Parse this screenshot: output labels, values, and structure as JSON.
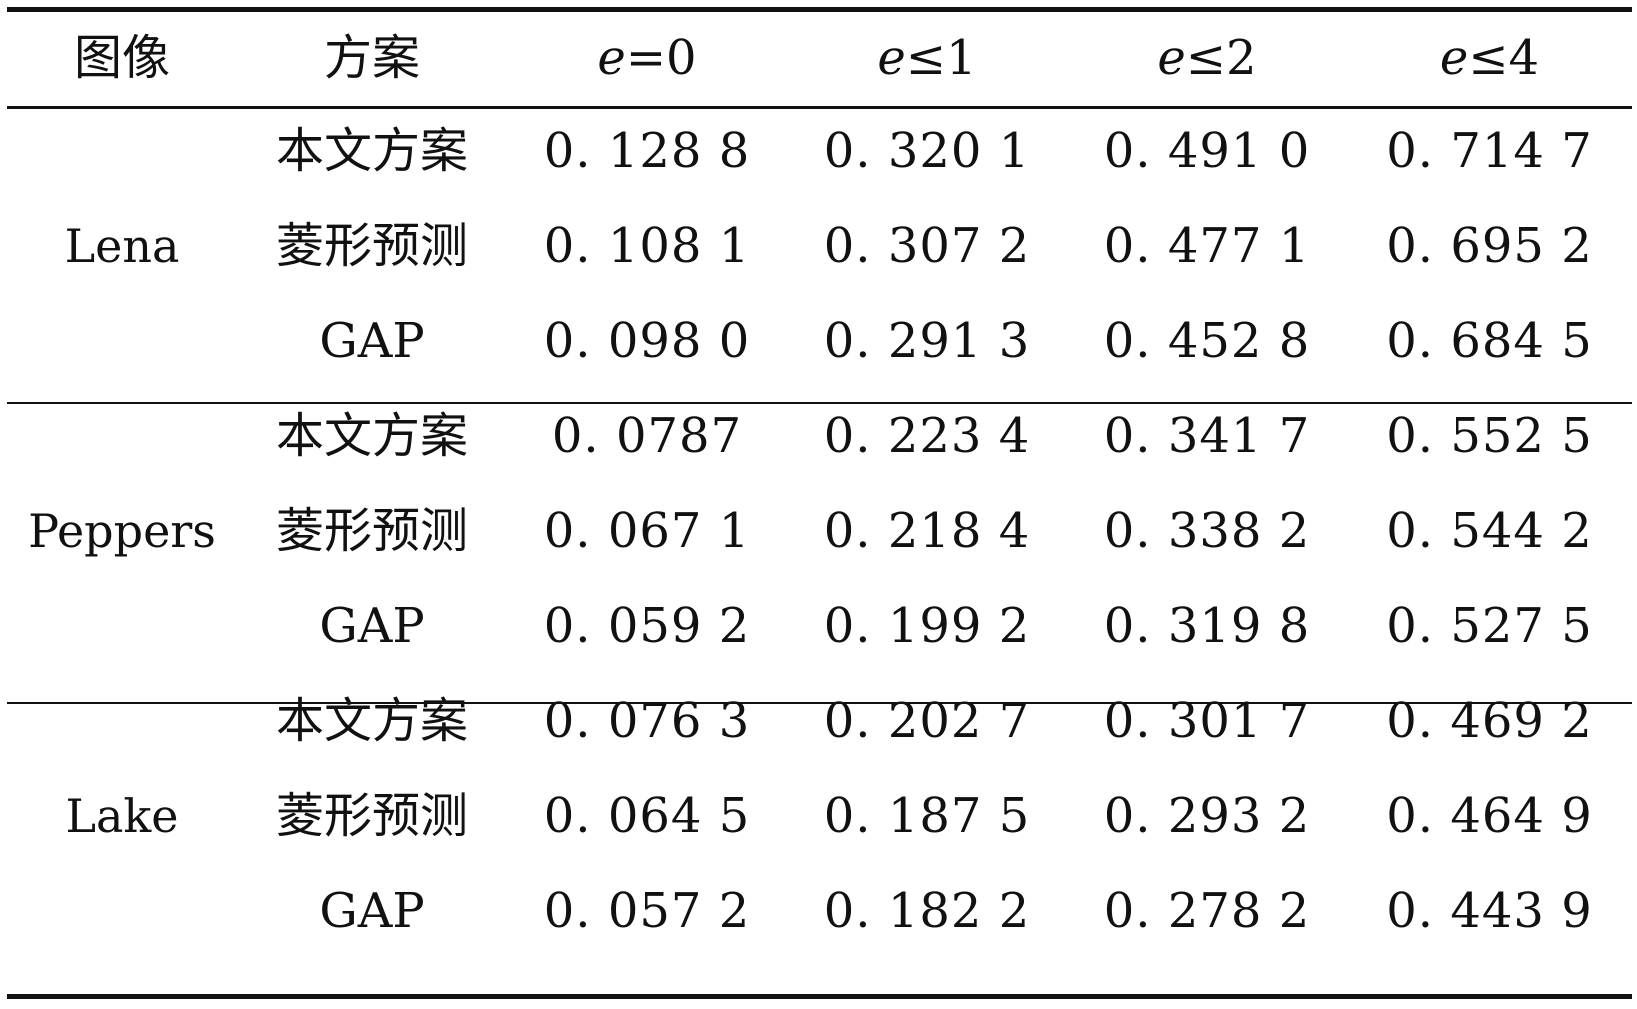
{
  "table": {
    "headers": {
      "image": "图像",
      "scheme": "方案",
      "e0_var": "e",
      "e0_op": "=0",
      "e1_var": "e",
      "e1_op": "≤1",
      "e2_var": "e",
      "e2_op": "≤2",
      "e4_var": "e",
      "e4_op": "≤4"
    },
    "groups": [
      {
        "image": "Lena",
        "rows": [
          {
            "scheme": "本文方案",
            "v0": "0. 128 8",
            "v1": "0. 320 1",
            "v2": "0. 491 0",
            "v4": "0. 714 7"
          },
          {
            "scheme": "菱形预测",
            "v0": "0. 108 1",
            "v1": "0. 307 2",
            "v2": "0. 477 1",
            "v4": "0. 695 2"
          },
          {
            "scheme": "GAP",
            "v0": "0. 098 0",
            "v1": "0. 291 3",
            "v2": "0. 452 8",
            "v4": "0. 684 5"
          }
        ]
      },
      {
        "image": "Peppers",
        "rows": [
          {
            "scheme": "本文方案",
            "v0": "0. 0787",
            "v1": "0. 223 4",
            "v2": "0. 341 7",
            "v4": "0. 552 5"
          },
          {
            "scheme": "菱形预测",
            "v0": "0. 067 1",
            "v1": "0. 218 4",
            "v2": "0. 338 2",
            "v4": "0. 544 2"
          },
          {
            "scheme": "GAP",
            "v0": "0. 059 2",
            "v1": "0. 199 2",
            "v2": "0. 319 8",
            "v4": "0. 527 5"
          }
        ]
      },
      {
        "image": "Lake",
        "rows": [
          {
            "scheme": "本文方案",
            "v0": "0. 076 3",
            "v1": "0. 202 7",
            "v2": "0. 301 7",
            "v4": "0. 469 2"
          },
          {
            "scheme": "菱形预测",
            "v0": "0. 064 5",
            "v1": "0. 187 5",
            "v2": "0. 293 2",
            "v4": "0. 464 9"
          },
          {
            "scheme": "GAP",
            "v0": "0. 057 2",
            "v1": "0. 182 2",
            "v2": "0. 278 2",
            "v4": "0. 443 9"
          }
        ]
      }
    ]
  }
}
